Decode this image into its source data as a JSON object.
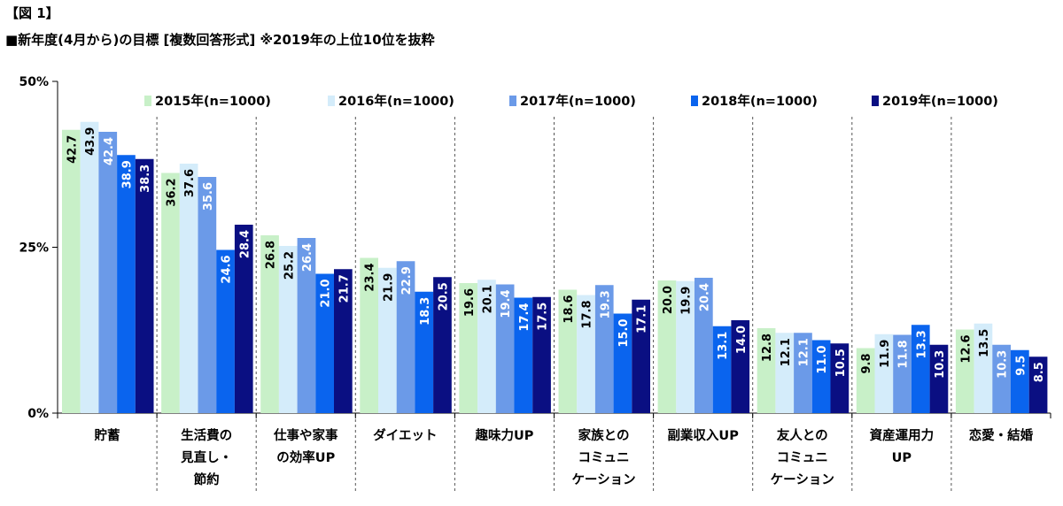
{
  "figure_label": "【図 1】",
  "figure_title": "■新年度(4月から)の目標 [複数回答形式]  ※2019年の上位10位を抜粋",
  "colors": {
    "s2015": "#c8f0c8",
    "s2016": "#d4ecfa",
    "s2017": "#6b9ae8",
    "s2018": "#0a64ee",
    "s2019": "#0a0f82",
    "light_text": "#000000",
    "dark_text": "#ffffff"
  },
  "chart_data": {
    "type": "bar",
    "ylim": [
      0,
      50
    ],
    "yticks": [
      0,
      25,
      50
    ],
    "ytick_labels": [
      "0%",
      "25%",
      "50%"
    ],
    "legend_position": "top",
    "categories": [
      [
        "貯蓄"
      ],
      [
        "生活費の",
        "見直し・",
        "節約"
      ],
      [
        "仕事や家事",
        "の効率UP"
      ],
      [
        "ダイエット"
      ],
      [
        "趣味力UP"
      ],
      [
        "家族との",
        "コミュニ",
        "ケーション"
      ],
      [
        "副業収入UP"
      ],
      [
        "友人との",
        "コミュニ",
        "ケーション"
      ],
      [
        "資産運用力",
        "UP"
      ],
      [
        "恋愛・結婚"
      ]
    ],
    "series": [
      {
        "name": "2015年(n=1000)",
        "values": [
          42.7,
          36.2,
          26.8,
          23.4,
          19.6,
          18.6,
          20.0,
          12.8,
          9.8,
          12.6
        ]
      },
      {
        "name": "2016年(n=1000)",
        "values": [
          43.9,
          37.6,
          25.2,
          21.9,
          20.1,
          17.8,
          19.9,
          12.1,
          11.9,
          13.5
        ]
      },
      {
        "name": "2017年(n=1000)",
        "values": [
          42.4,
          35.6,
          26.4,
          22.9,
          19.4,
          19.3,
          20.4,
          12.1,
          11.8,
          10.3
        ]
      },
      {
        "name": "2018年(n=1000)",
        "values": [
          38.9,
          24.6,
          21.0,
          18.3,
          17.4,
          15.0,
          13.1,
          11.0,
          13.3,
          9.5
        ]
      },
      {
        "name": "2019年(n=1000)",
        "values": [
          38.3,
          28.4,
          21.7,
          20.5,
          17.5,
          17.1,
          14.0,
          10.5,
          10.3,
          8.5
        ]
      }
    ]
  }
}
